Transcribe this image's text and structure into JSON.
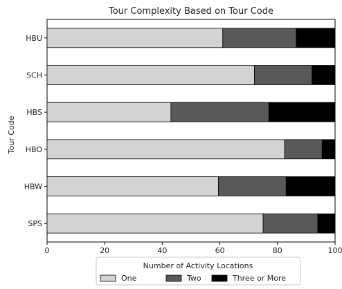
{
  "chart_data": {
    "type": "bar",
    "orientation": "horizontal",
    "stacked": true,
    "title": "Tour Complexity Based on Tour Code",
    "xlabel": "",
    "ylabel": "Tour Code",
    "xlim": [
      0,
      100
    ],
    "xticks": [
      "0",
      "20",
      "40",
      "60",
      "80",
      "100"
    ],
    "categories": [
      "HBU",
      "SCH",
      "HBS",
      "HBO",
      "HBW",
      "SPS"
    ],
    "series": [
      {
        "name": "One",
        "color": "#d3d3d3",
        "values": [
          61,
          72,
          43,
          82.5,
          59.5,
          75
        ]
      },
      {
        "name": "Two",
        "color": "#595959",
        "values": [
          25.5,
          20,
          34,
          13,
          23.5,
          19
        ]
      },
      {
        "name": "Three or More",
        "color": "#000000",
        "values": [
          13.5,
          8,
          23,
          4.5,
          17,
          6
        ]
      }
    ],
    "legend": {
      "title": "Number of Activity Locations",
      "position": "bottom"
    },
    "grid": false
  }
}
